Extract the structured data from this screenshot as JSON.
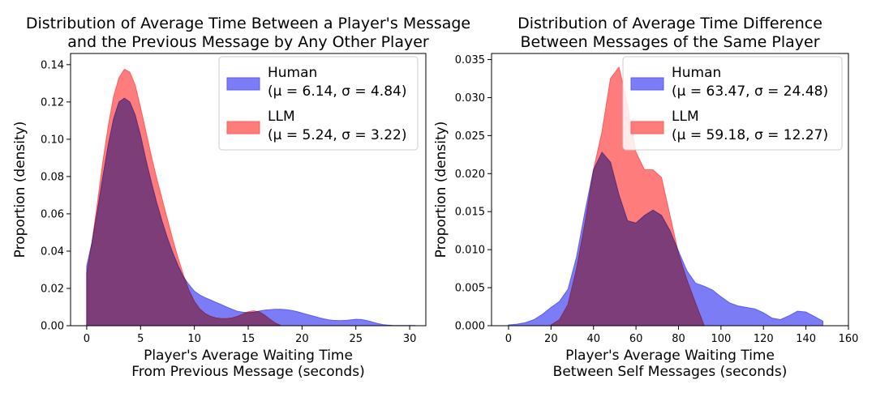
{
  "chart_data": [
    {
      "type": "area",
      "title": [
        "Distribution of Average Time Between a Player's Message",
        "and the Previous Message by Any Other Player"
      ],
      "xlabel": [
        "Player's Average Waiting Time",
        "From Previous Message (seconds)"
      ],
      "ylabel": "Proportion (density)",
      "xlim": [
        -1.5,
        31.5
      ],
      "ylim": [
        0,
        0.146
      ],
      "xticks": [
        "0",
        "5",
        "10",
        "15",
        "20",
        "25",
        "30"
      ],
      "yticks": [
        "0.00",
        "0.02",
        "0.04",
        "0.06",
        "0.08",
        "0.10",
        "0.12",
        "0.14"
      ],
      "grid": false,
      "legend_position": "top-right",
      "series": [
        {
          "name": "Human",
          "stats": "(μ = 6.14, σ = 4.84)",
          "color": "#5b5bf5",
          "x": [
            0,
            0.5,
            1,
            1.5,
            2,
            2.5,
            3,
            3.5,
            4,
            4.5,
            5,
            5.5,
            6,
            6.5,
            7,
            7.5,
            8,
            8.5,
            9,
            9.5,
            10,
            10.5,
            11,
            11.5,
            12,
            12.5,
            13,
            13.5,
            14,
            14.5,
            15,
            15.5,
            16,
            16.5,
            17,
            17.5,
            18,
            18.5,
            19,
            19.5,
            20,
            20.5,
            21,
            21.5,
            22,
            22.5,
            23,
            23.5,
            24,
            24.5,
            25,
            25.5,
            26,
            26.5,
            27,
            27.5,
            28,
            28.5,
            29,
            29.5,
            30,
            30.5
          ],
          "y": [
            0.032,
            0.045,
            0.062,
            0.08,
            0.097,
            0.111,
            0.12,
            0.122,
            0.12,
            0.113,
            0.102,
            0.089,
            0.077,
            0.066,
            0.056,
            0.047,
            0.039,
            0.032,
            0.026,
            0.022,
            0.0185,
            0.0165,
            0.015,
            0.0138,
            0.0125,
            0.0113,
            0.01,
            0.0088,
            0.0077,
            0.0072,
            0.007,
            0.0072,
            0.0078,
            0.0083,
            0.0086,
            0.0088,
            0.0088,
            0.0086,
            0.0082,
            0.0076,
            0.0068,
            0.006,
            0.0052,
            0.0044,
            0.0037,
            0.0031,
            0.0028,
            0.0027,
            0.0028,
            0.0031,
            0.0034,
            0.0033,
            0.0028,
            0.002,
            0.0012,
            0.0006,
            0.0003,
            0.0001,
            0.0001,
            0.0001,
            0.0001,
            0.0001
          ]
        },
        {
          "name": "LLM",
          "stats": "(μ = 5.24, σ = 3.22)",
          "color": "#ff5b5b",
          "x": [
            0,
            0.5,
            1,
            1.5,
            2,
            2.5,
            3,
            3.5,
            4,
            4.5,
            5,
            5.5,
            6,
            6.5,
            7,
            7.5,
            8,
            8.5,
            9,
            9.5,
            10,
            10.5,
            11,
            11.5,
            12,
            12.5,
            13,
            13.5,
            14,
            14.5,
            15,
            15.5,
            16,
            16.5,
            17,
            17.5,
            18
          ],
          "y": [
            0.028,
            0.045,
            0.066,
            0.088,
            0.107,
            0.123,
            0.133,
            0.1375,
            0.136,
            0.129,
            0.117,
            0.104,
            0.091,
            0.079,
            0.068,
            0.057,
            0.046,
            0.036,
            0.027,
            0.019,
            0.013,
            0.009,
            0.0065,
            0.005,
            0.0042,
            0.0038,
            0.0038,
            0.0042,
            0.005,
            0.0062,
            0.0075,
            0.008,
            0.0075,
            0.0058,
            0.0035,
            0.0015,
            0.0002
          ]
        }
      ]
    },
    {
      "type": "area",
      "title": [
        "Distribution of Average Time Difference",
        "Between Messages of the Same Player"
      ],
      "xlabel": [
        "Player's Average Waiting Time",
        "Between Self Messages (seconds)"
      ],
      "ylabel": "Proportion (density)",
      "xlim": [
        -8,
        160
      ],
      "ylim": [
        0,
        0.0358
      ],
      "xticks": [
        "0",
        "20",
        "40",
        "60",
        "80",
        "100",
        "120",
        "140",
        "160"
      ],
      "yticks": [
        "0.000",
        "0.005",
        "0.010",
        "0.015",
        "0.020",
        "0.025",
        "0.030",
        "0.035"
      ],
      "grid": false,
      "legend_position": "top-right",
      "series": [
        {
          "name": "Human",
          "stats": "(μ = 63.47, σ = 24.48)",
          "color": "#5b5bf5",
          "x": [
            0,
            4,
            8,
            12,
            16,
            20,
            24,
            28,
            32,
            36,
            40,
            44,
            48,
            52,
            56,
            60,
            64,
            68,
            72,
            76,
            80,
            84,
            88,
            92,
            96,
            100,
            104,
            108,
            112,
            116,
            120,
            124,
            128,
            132,
            136,
            140,
            144,
            148
          ],
          "y": [
            0.0001,
            0.0002,
            0.0004,
            0.0008,
            0.0015,
            0.0024,
            0.0032,
            0.0048,
            0.009,
            0.015,
            0.0205,
            0.0228,
            0.0215,
            0.0172,
            0.0138,
            0.0135,
            0.0145,
            0.0152,
            0.0145,
            0.0125,
            0.0098,
            0.0072,
            0.0056,
            0.0052,
            0.0047,
            0.0038,
            0.003,
            0.0026,
            0.0024,
            0.0022,
            0.0017,
            0.001,
            0.0008,
            0.0013,
            0.0019,
            0.0018,
            0.0012,
            0.0006
          ]
        },
        {
          "name": "LLM",
          "stats": "(μ = 59.18, σ = 12.27)",
          "color": "#ff5b5b",
          "x": [
            20,
            24,
            28,
            32,
            36,
            40,
            44,
            48,
            52,
            56,
            60,
            64,
            68,
            72,
            76,
            80,
            84,
            88,
            92
          ],
          "y": [
            0.0001,
            0.0008,
            0.0028,
            0.0075,
            0.0135,
            0.0205,
            0.0255,
            0.0325,
            0.034,
            0.029,
            0.0228,
            0.0205,
            0.0205,
            0.0195,
            0.0145,
            0.0095,
            0.006,
            0.003,
            0.0001
          ]
        }
      ]
    }
  ]
}
